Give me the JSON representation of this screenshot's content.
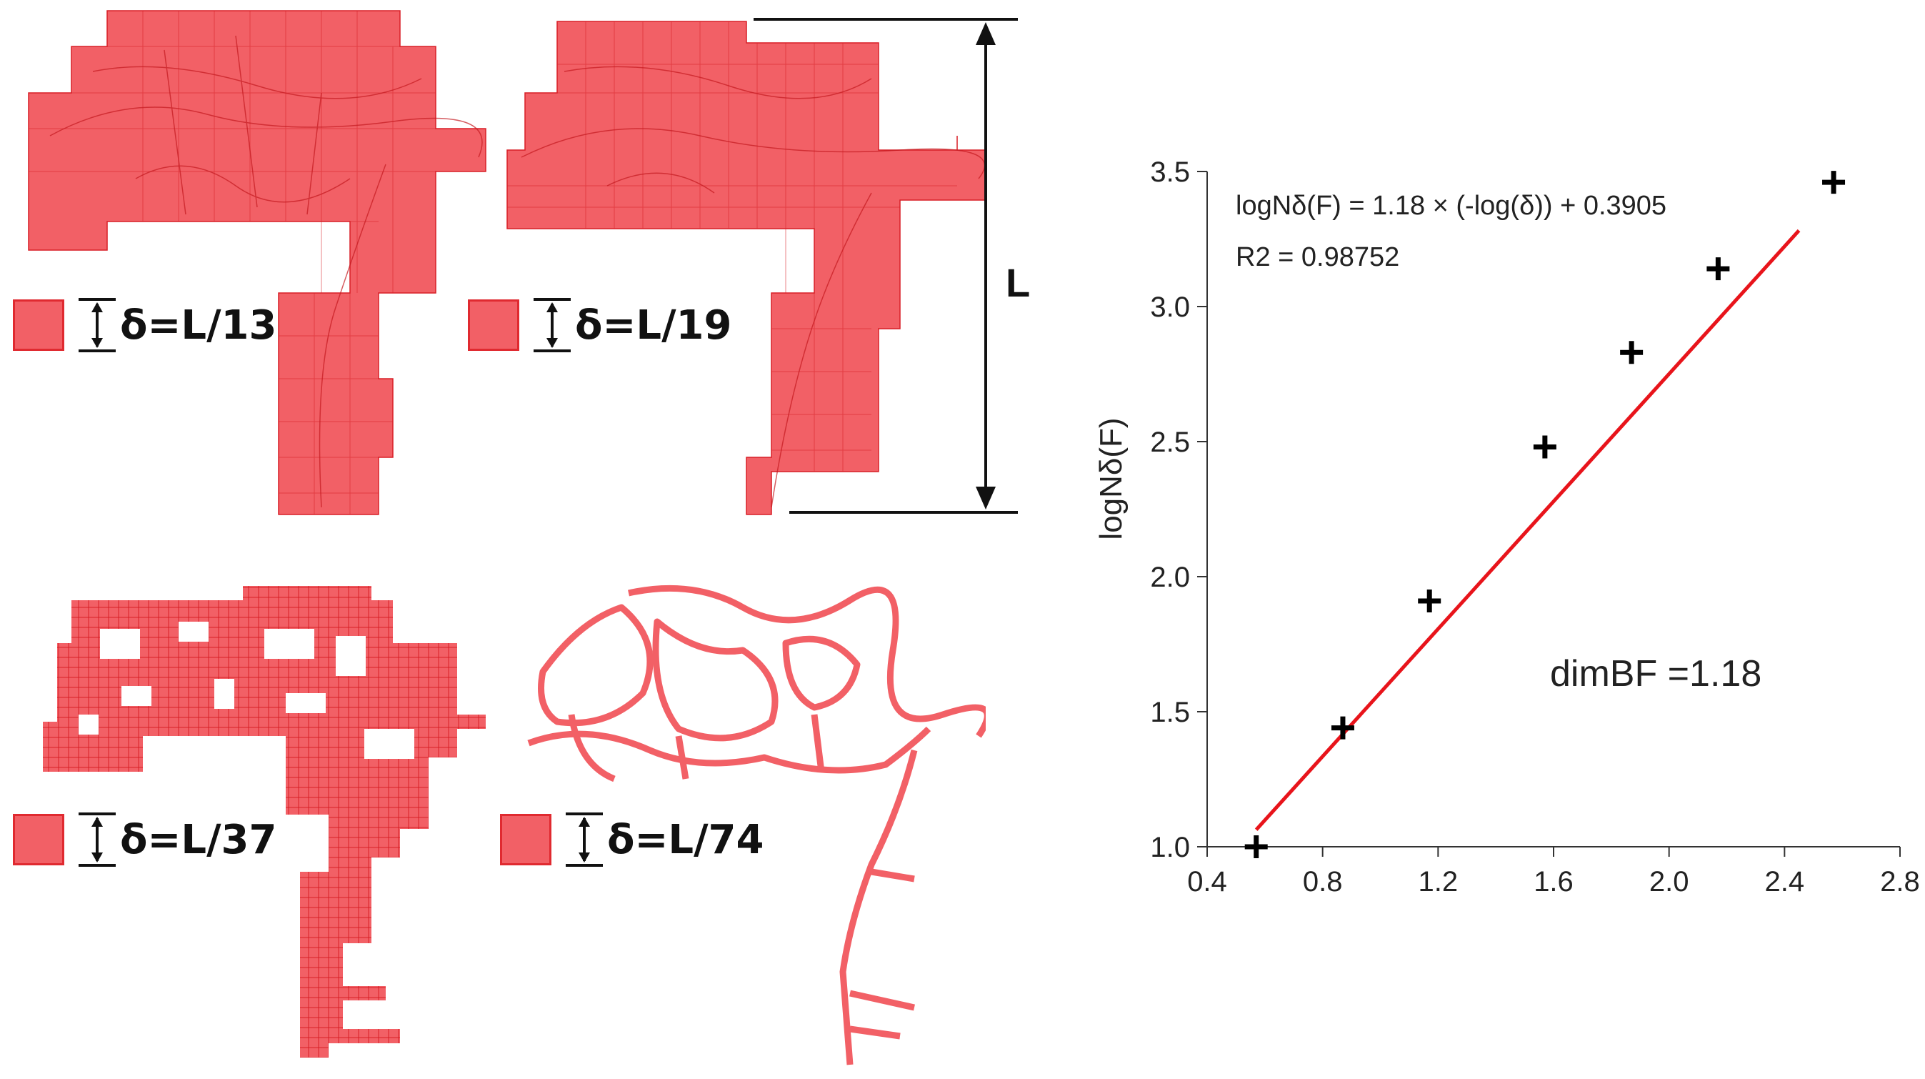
{
  "panels": [
    {
      "label": "δ=L/13",
      "divisor": 13
    },
    {
      "label": "δ=L/19",
      "divisor": 19
    },
    {
      "label": "δ=L/37",
      "divisor": 37
    },
    {
      "label": "δ=L/74",
      "divisor": 74
    }
  ],
  "span_label": "L",
  "colors": {
    "fill": "#f26066",
    "edge": "#d81f26",
    "fit_line": "#e8141b",
    "marker": "#000000"
  },
  "chart_data": {
    "type": "scatter",
    "xlim": [
      0.4,
      2.8
    ],
    "ylim": [
      1.0,
      3.5
    ],
    "x_ticks": [
      "0.4",
      "0.8",
      "1.2",
      "1.6",
      "2.0",
      "2.4",
      "2.8"
    ],
    "y_ticks": [
      "1.0",
      "1.5",
      "2.0",
      "2.5",
      "3.0",
      "3.5"
    ],
    "x_tick_values": [
      0.4,
      0.8,
      1.2,
      1.6,
      2.0,
      2.4,
      2.8
    ],
    "y_tick_values": [
      1.0,
      1.5,
      2.0,
      2.5,
      3.0,
      3.5
    ],
    "ylabel": "logNδ(F)",
    "xlabel": "",
    "points": [
      {
        "x": 0.57,
        "y": 1.0
      },
      {
        "x": 0.87,
        "y": 1.44
      },
      {
        "x": 1.17,
        "y": 1.91
      },
      {
        "x": 1.57,
        "y": 2.48
      },
      {
        "x": 1.87,
        "y": 2.83
      },
      {
        "x": 2.17,
        "y": 3.14
      },
      {
        "x": 2.57,
        "y": 3.46
      }
    ],
    "fit": {
      "slope": 1.18,
      "intercept": 0.3905,
      "x_from": 0.57,
      "x_to": 2.45
    },
    "equation": "logNδ(F) = 1.18 × (-log(δ)) + 0.3905",
    "r2_label": "R2 = 0.98752",
    "dimension_label": "dimBF =1.18"
  }
}
